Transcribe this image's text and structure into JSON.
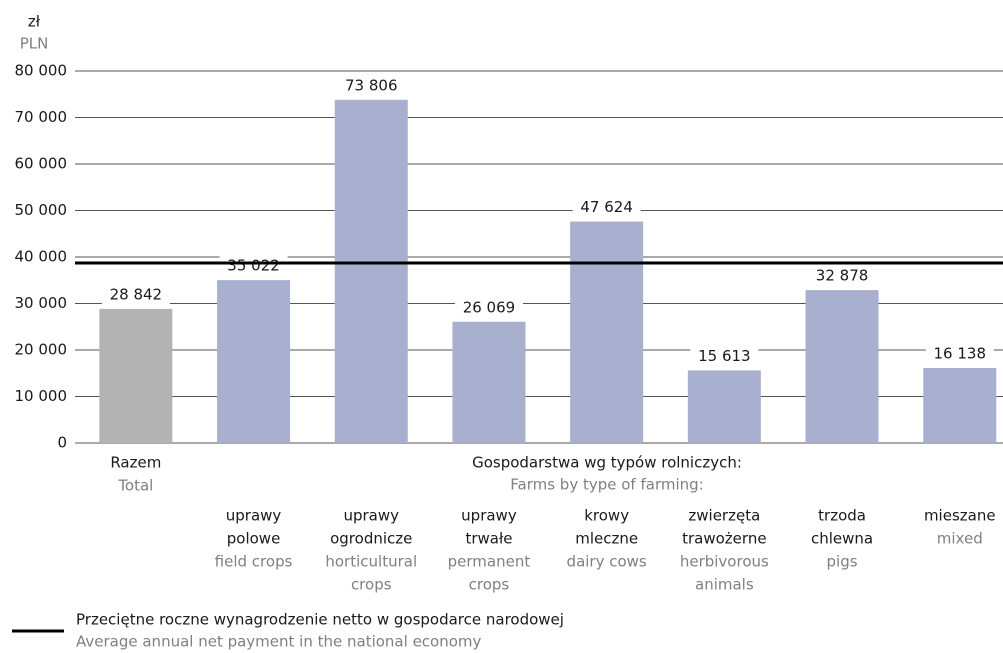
{
  "chart_data": {
    "type": "bar",
    "y_unit": "zł",
    "y_unit_en": "PLN",
    "categories": [
      [
        "Razem"
      ],
      [
        "uprawy",
        "polowe"
      ],
      [
        "uprawy",
        "ogrodnicze"
      ],
      [
        "uprawy",
        "trwałe"
      ],
      [
        "krowy",
        "mleczne"
      ],
      [
        "zwierzęta",
        "trawożerne"
      ],
      [
        "trzoda",
        "chlewna"
      ],
      [
        "mieszane"
      ]
    ],
    "categories_en": [
      [
        "Total"
      ],
      [
        "field crops"
      ],
      [
        "horticultural",
        "crops"
      ],
      [
        "permanent",
        "crops"
      ],
      [
        "dairy cows"
      ],
      [
        "herbivorous",
        "animals"
      ],
      [
        "pigs"
      ],
      [
        "mixed"
      ]
    ],
    "group_label": "Gospodarstwa wg typów rolniczych:",
    "group_label_en": "Farms by type of farming:",
    "values": [
      28842,
      35022,
      73806,
      26069,
      47624,
      15613,
      32878,
      16138
    ],
    "value_labels": [
      "28 842",
      "35 022",
      "73 806",
      "26 069",
      "47 624",
      "15 613",
      "32 878",
      "16 138"
    ],
    "colors": [
      "#b3b3b3",
      "#a9afcf",
      "#a9afcf",
      "#a9afcf",
      "#a9afcf",
      "#a9afcf",
      "#a9afcf",
      "#a9afcf"
    ],
    "ylim": [
      0,
      80000
    ],
    "yticks": [
      0,
      {
        "value": 10000,
        "label": "10 000"
      },
      {
        "value": 20000,
        "label": "20 000"
      },
      {
        "value": 30000,
        "label": "30 000"
      },
      {
        "value": 40000,
        "label": "40 000"
      },
      {
        "value": 50000,
        "label": "50 000"
      },
      {
        "value": 60000,
        "label": "60 000"
      },
      {
        "value": 70000,
        "label": "70 000"
      },
      {
        "value": 80000,
        "label": "80 000"
      }
    ],
    "grid": true,
    "reference_line": {
      "value": 38700,
      "color": "#000000",
      "label": "Przeciętne roczne wynagrodzenie netto w gospodarce narodowej",
      "label_en": "Average annual net payment in the national economy"
    }
  }
}
